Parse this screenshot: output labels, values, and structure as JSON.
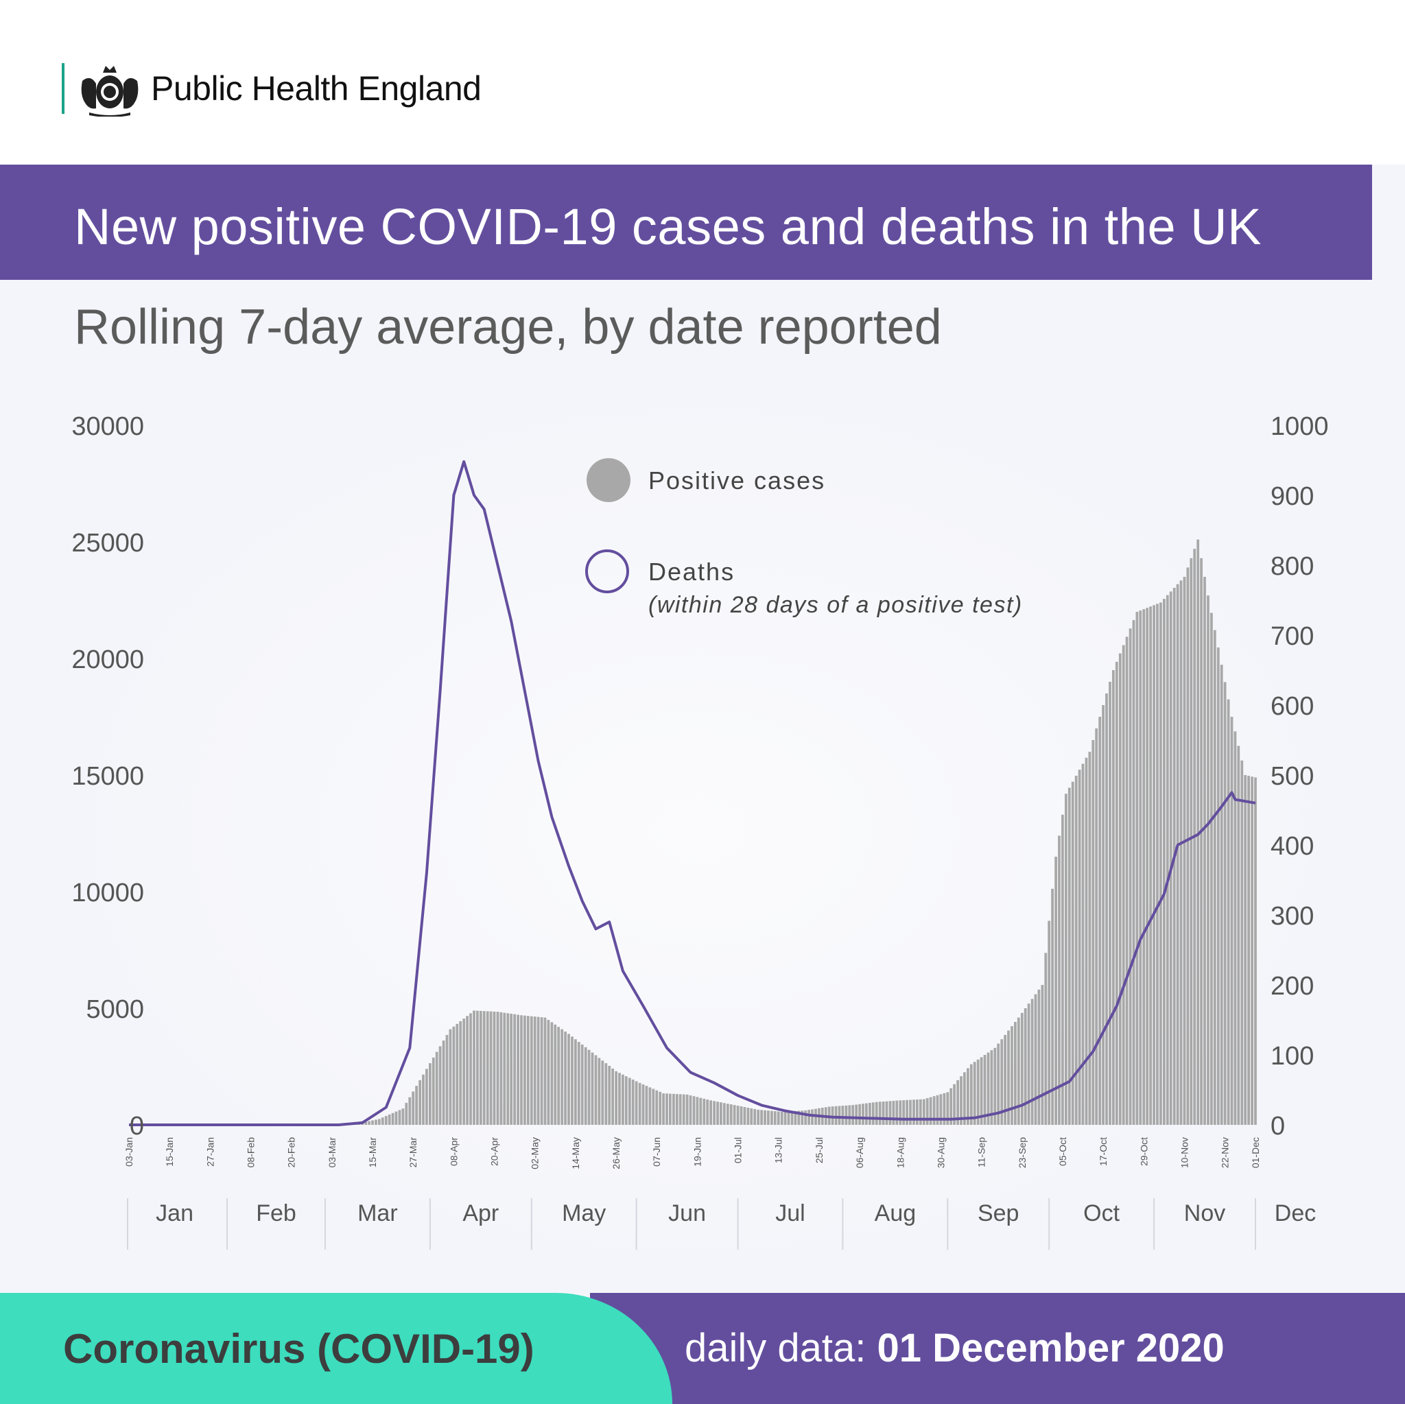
{
  "header": {
    "org_name": "Public Health England"
  },
  "title": "New positive COVID-19 cases and deaths in the UK",
  "subtitle": "Rolling 7-day average, by date reported",
  "legend": {
    "cases_label": "Positive cases",
    "deaths_label": "Deaths",
    "deaths_note": "(within 28 days of a positive test)"
  },
  "footer": {
    "title": "Coronavirus (COVID-19)",
    "date_prefix": "daily data:",
    "date_value": "01 December 2020"
  },
  "colors": {
    "cases": "#a8a8a8",
    "deaths": "#634e9e",
    "band": "#634e9e",
    "accent": "#3dddbe"
  },
  "chart_data": {
    "type": "bar",
    "legend_position": "top-center",
    "left_axis": {
      "ticks": [
        0,
        5000,
        10000,
        15000,
        20000,
        25000,
        30000
      ],
      "ylim": [
        0,
        30000
      ]
    },
    "right_axis": {
      "ticks": [
        0,
        100,
        200,
        300,
        400,
        500,
        600,
        700,
        800,
        900,
        1000
      ],
      "ylim": [
        0,
        1000
      ]
    },
    "x_tick_labels": [
      "03-Jan",
      "15-Jan",
      "27-Jan",
      "08-Feb",
      "20-Feb",
      "03-Mar",
      "15-Mar",
      "27-Mar",
      "08-Apr",
      "20-Apr",
      "02-May",
      "14-May",
      "26-May",
      "07-Jun",
      "19-Jun",
      "01-Jul",
      "13-Jul",
      "25-Jul",
      "06-Aug",
      "18-Aug",
      "30-Aug",
      "11-Sep",
      "23-Sep",
      "05-Oct",
      "17-Oct",
      "29-Oct",
      "10-Nov",
      "22-Nov",
      "01-Dec"
    ],
    "months": [
      "Jan",
      "Feb",
      "Mar",
      "Apr",
      "May",
      "Jun",
      "Jul",
      "Aug",
      "Sep",
      "Oct",
      "Nov",
      "Dec"
    ],
    "series": [
      {
        "name": "Positive cases",
        "axis": "left",
        "style": "bar",
        "points": [
          [
            "2020-03-03",
            0
          ],
          [
            "2020-03-10",
            40
          ],
          [
            "2020-03-17",
            250
          ],
          [
            "2020-03-24",
            700
          ],
          [
            "2020-03-31",
            2400
          ],
          [
            "2020-04-07",
            4100
          ],
          [
            "2020-04-14",
            4900
          ],
          [
            "2020-04-21",
            4850
          ],
          [
            "2020-04-28",
            4700
          ],
          [
            "2020-05-05",
            4600
          ],
          [
            "2020-05-12",
            3900
          ],
          [
            "2020-05-19",
            3100
          ],
          [
            "2020-05-26",
            2300
          ],
          [
            "2020-06-02",
            1800
          ],
          [
            "2020-06-09",
            1350
          ],
          [
            "2020-06-16",
            1300
          ],
          [
            "2020-06-23",
            1050
          ],
          [
            "2020-06-30",
            850
          ],
          [
            "2020-07-07",
            650
          ],
          [
            "2020-07-14",
            560
          ],
          [
            "2020-07-21",
            620
          ],
          [
            "2020-07-28",
            780
          ],
          [
            "2020-08-04",
            850
          ],
          [
            "2020-08-11",
            980
          ],
          [
            "2020-08-18",
            1050
          ],
          [
            "2020-08-25",
            1100
          ],
          [
            "2020-09-01",
            1400
          ],
          [
            "2020-09-08",
            2600
          ],
          [
            "2020-09-15",
            3300
          ],
          [
            "2020-09-22",
            4600
          ],
          [
            "2020-09-29",
            6000
          ],
          [
            "2020-10-03",
            11500
          ],
          [
            "2020-10-06",
            14200
          ],
          [
            "2020-10-13",
            16000
          ],
          [
            "2020-10-20",
            19500
          ],
          [
            "2020-10-27",
            22000
          ],
          [
            "2020-11-03",
            22400
          ],
          [
            "2020-11-10",
            23500
          ],
          [
            "2020-11-14",
            25100
          ],
          [
            "2020-11-17",
            22700
          ],
          [
            "2020-11-24",
            17500
          ],
          [
            "2020-11-28",
            15000
          ],
          [
            "2020-12-01",
            14900
          ]
        ]
      },
      {
        "name": "Deaths",
        "axis": "right",
        "style": "line",
        "points": [
          [
            "2020-03-05",
            0
          ],
          [
            "2020-03-12",
            3
          ],
          [
            "2020-03-19",
            25
          ],
          [
            "2020-03-26",
            110
          ],
          [
            "2020-03-31",
            360
          ],
          [
            "2020-04-04",
            620
          ],
          [
            "2020-04-08",
            900
          ],
          [
            "2020-04-11",
            948
          ],
          [
            "2020-04-14",
            900
          ],
          [
            "2020-04-17",
            880
          ],
          [
            "2020-04-21",
            800
          ],
          [
            "2020-04-25",
            720
          ],
          [
            "2020-04-29",
            620
          ],
          [
            "2020-05-03",
            520
          ],
          [
            "2020-05-07",
            440
          ],
          [
            "2020-05-12",
            370
          ],
          [
            "2020-05-16",
            320
          ],
          [
            "2020-05-20",
            280
          ],
          [
            "2020-05-24",
            290
          ],
          [
            "2020-05-28",
            220
          ],
          [
            "2020-06-03",
            170
          ],
          [
            "2020-06-10",
            110
          ],
          [
            "2020-06-17",
            75
          ],
          [
            "2020-06-24",
            60
          ],
          [
            "2020-07-01",
            42
          ],
          [
            "2020-07-08",
            28
          ],
          [
            "2020-07-15",
            20
          ],
          [
            "2020-07-22",
            14
          ],
          [
            "2020-07-29",
            11
          ],
          [
            "2020-08-05",
            10
          ],
          [
            "2020-08-12",
            9
          ],
          [
            "2020-08-19",
            8
          ],
          [
            "2020-08-26",
            8
          ],
          [
            "2020-09-02",
            8
          ],
          [
            "2020-09-09",
            10
          ],
          [
            "2020-09-16",
            17
          ],
          [
            "2020-09-23",
            28
          ],
          [
            "2020-09-30",
            45
          ],
          [
            "2020-10-07",
            62
          ],
          [
            "2020-10-14",
            105
          ],
          [
            "2020-10-21",
            170
          ],
          [
            "2020-10-28",
            265
          ],
          [
            "2020-11-04",
            330
          ],
          [
            "2020-11-08",
            400
          ],
          [
            "2020-11-14",
            415
          ],
          [
            "2020-11-17",
            430
          ],
          [
            "2020-11-21",
            455
          ],
          [
            "2020-11-24",
            475
          ],
          [
            "2020-11-25",
            465
          ],
          [
            "2020-12-01",
            460
          ]
        ]
      }
    ]
  }
}
